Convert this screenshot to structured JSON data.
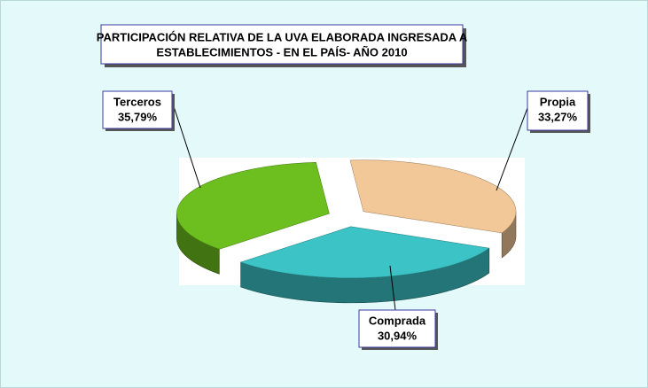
{
  "chart_data": {
    "type": "pie",
    "title": [
      "PARTICIPACIÓN RELATIVA DE LA UVA ELABORADA INGRESADA A",
      "ESTABLECIMIENTOS - EN EL PAÍS- AÑO 2010"
    ],
    "categories": [
      "Propia",
      "Comprada",
      "Terceros"
    ],
    "values": [
      33.27,
      30.94,
      35.79
    ],
    "value_labels": [
      "33,27%",
      "30,94%",
      "35,79%"
    ],
    "colors": [
      "#f3c898",
      "#3bc3c6",
      "#6cbf1f"
    ]
  }
}
